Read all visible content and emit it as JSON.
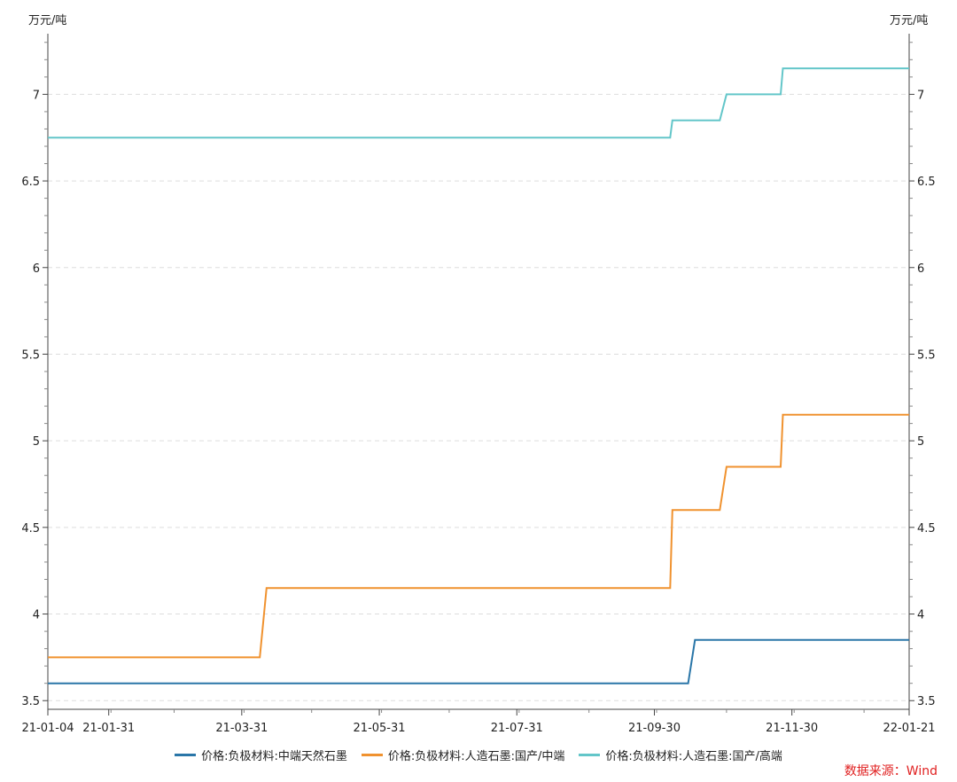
{
  "chart_data": {
    "type": "line",
    "step": true,
    "y_unit_left": "万元/吨",
    "y_unit_right": "万元/吨",
    "ylim": [
      3.45,
      7.35
    ],
    "y_ticks": [
      "3.5",
      "4",
      "4.5",
      "5",
      "5.5",
      "6",
      "6.5",
      "7"
    ],
    "x_range": [
      "2021-01-04",
      "2022-01-21"
    ],
    "x_ticks": [
      {
        "date": "2021-01-04",
        "label": "21-01-04"
      },
      {
        "date": "2021-01-31",
        "label": "21-01-31"
      },
      {
        "date": "2021-03-31",
        "label": "21-03-31"
      },
      {
        "date": "2021-05-31",
        "label": "21-05-31"
      },
      {
        "date": "2021-07-31",
        "label": "21-07-31"
      },
      {
        "date": "2021-09-30",
        "label": "21-09-30"
      },
      {
        "date": "2021-11-30",
        "label": "21-11-30"
      },
      {
        "date": "2022-01-21",
        "label": "22-01-21"
      }
    ],
    "grid": "horizontal-dashed",
    "legend_position": "bottom",
    "series": [
      {
        "name": "价格:负极材料:中端天然石墨",
        "color": "#2a76a8",
        "points": [
          {
            "x": "2021-01-04",
            "y": 3.6
          },
          {
            "x": "2021-10-15",
            "y": 3.6
          },
          {
            "x": "2021-10-18",
            "y": 3.85
          },
          {
            "x": "2022-01-21",
            "y": 3.85
          }
        ]
      },
      {
        "name": "价格:负极材料:人造石墨:国产/中端",
        "color": "#f0922f",
        "points": [
          {
            "x": "2021-01-04",
            "y": 3.75
          },
          {
            "x": "2021-04-08",
            "y": 3.75
          },
          {
            "x": "2021-04-11",
            "y": 4.15
          },
          {
            "x": "2021-10-07",
            "y": 4.15
          },
          {
            "x": "2021-10-08",
            "y": 4.6
          },
          {
            "x": "2021-10-29",
            "y": 4.6
          },
          {
            "x": "2021-11-01",
            "y": 4.85
          },
          {
            "x": "2021-11-25",
            "y": 4.85
          },
          {
            "x": "2021-11-26",
            "y": 5.15
          },
          {
            "x": "2022-01-21",
            "y": 5.15
          }
        ]
      },
      {
        "name": "价格:负极材料:人造石墨:国产/高端",
        "color": "#63c6c9",
        "points": [
          {
            "x": "2021-01-04",
            "y": 6.75
          },
          {
            "x": "2021-10-07",
            "y": 6.75
          },
          {
            "x": "2021-10-08",
            "y": 6.85
          },
          {
            "x": "2021-10-29",
            "y": 6.85
          },
          {
            "x": "2021-11-01",
            "y": 7.0
          },
          {
            "x": "2021-11-25",
            "y": 7.0
          },
          {
            "x": "2021-11-26",
            "y": 7.15
          },
          {
            "x": "2022-01-21",
            "y": 7.15
          }
        ]
      }
    ]
  },
  "source_text": "数据来源：Wind"
}
